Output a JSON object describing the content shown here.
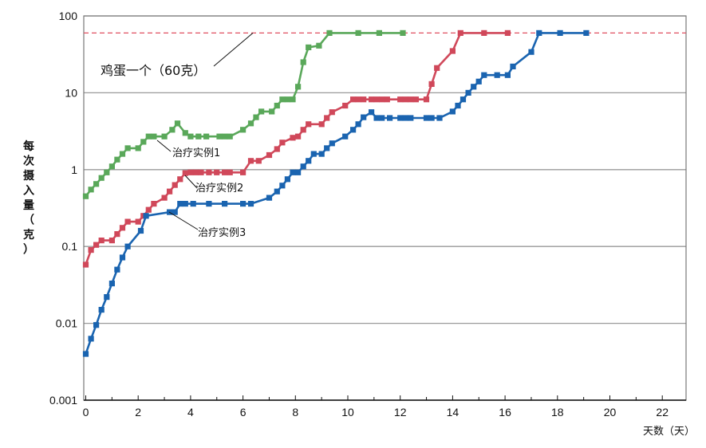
{
  "chart_data": {
    "type": "line",
    "yscale": "log",
    "xlim": [
      0,
      23
    ],
    "ylim": [
      0.001,
      100
    ],
    "x_ticks": [
      0,
      2,
      4,
      6,
      8,
      10,
      12,
      14,
      16,
      18,
      20,
      22
    ],
    "y_ticks": [
      {
        "value": 0.001,
        "label": "0.001"
      },
      {
        "value": 0.01,
        "label": "0.01"
      },
      {
        "value": 0.1,
        "label": "0.1"
      },
      {
        "value": 1,
        "label": "1"
      },
      {
        "value": 10,
        "label": "10"
      },
      {
        "value": 100,
        "label": "100"
      }
    ],
    "xlabel": "天数（天）",
    "ylabel": "每次摄入量（克）",
    "grid": "horizontal",
    "reference_line": {
      "value": 60,
      "label": "鸡蛋一个（60克）",
      "color": "#e05060"
    },
    "series": [
      {
        "name": "治疗实例1",
        "color": "#5aa85a",
        "points": [
          [
            0,
            0.45
          ],
          [
            0.2,
            0.55
          ],
          [
            0.4,
            0.65
          ],
          [
            0.6,
            0.78
          ],
          [
            0.8,
            0.92
          ],
          [
            1.0,
            1.1
          ],
          [
            1.2,
            1.35
          ],
          [
            1.4,
            1.6
          ],
          [
            1.6,
            1.9
          ],
          [
            2.0,
            1.9
          ],
          [
            2.2,
            2.3
          ],
          [
            2.4,
            2.7
          ],
          [
            2.6,
            2.7
          ],
          [
            3.0,
            2.7
          ],
          [
            3.3,
            3.3
          ],
          [
            3.5,
            4.0
          ],
          [
            3.8,
            3.0
          ],
          [
            4.0,
            2.7
          ],
          [
            4.3,
            2.7
          ],
          [
            4.6,
            2.7
          ],
          [
            5.1,
            2.7
          ],
          [
            5.3,
            2.7
          ],
          [
            5.5,
            2.7
          ],
          [
            6.0,
            3.3
          ],
          [
            6.3,
            4.0
          ],
          [
            6.5,
            4.8
          ],
          [
            6.7,
            5.7
          ],
          [
            7.1,
            5.7
          ],
          [
            7.3,
            6.8
          ],
          [
            7.5,
            8.2
          ],
          [
            7.7,
            8.2
          ],
          [
            7.9,
            8.2
          ],
          [
            8.1,
            12
          ],
          [
            8.3,
            25
          ],
          [
            8.5,
            39
          ],
          [
            8.9,
            41
          ],
          [
            9.3,
            60
          ],
          [
            10.4,
            60
          ],
          [
            11.2,
            60
          ],
          [
            12.1,
            60
          ]
        ]
      },
      {
        "name": "治疗实例2",
        "color": "#d0485a",
        "points": [
          [
            0,
            0.058
          ],
          [
            0.2,
            0.09
          ],
          [
            0.4,
            0.105
          ],
          [
            0.6,
            0.12
          ],
          [
            1.0,
            0.12
          ],
          [
            1.2,
            0.145
          ],
          [
            1.4,
            0.175
          ],
          [
            1.6,
            0.21
          ],
          [
            2.0,
            0.21
          ],
          [
            2.2,
            0.25
          ],
          [
            2.4,
            0.3
          ],
          [
            2.6,
            0.36
          ],
          [
            3.0,
            0.43
          ],
          [
            3.2,
            0.52
          ],
          [
            3.4,
            0.63
          ],
          [
            3.6,
            0.75
          ],
          [
            3.8,
            0.9
          ],
          [
            4.0,
            0.92
          ],
          [
            4.2,
            0.92
          ],
          [
            4.4,
            0.92
          ],
          [
            4.7,
            0.92
          ],
          [
            5.0,
            0.92
          ],
          [
            5.3,
            0.92
          ],
          [
            5.5,
            0.92
          ],
          [
            6.0,
            0.92
          ],
          [
            6.3,
            1.3
          ],
          [
            6.6,
            1.3
          ],
          [
            7.0,
            1.55
          ],
          [
            7.3,
            1.85
          ],
          [
            7.5,
            2.25
          ],
          [
            7.9,
            2.6
          ],
          [
            8.1,
            2.7
          ],
          [
            8.3,
            3.3
          ],
          [
            8.5,
            3.9
          ],
          [
            9.0,
            3.9
          ],
          [
            9.2,
            4.7
          ],
          [
            9.4,
            5.6
          ],
          [
            9.9,
            6.8
          ],
          [
            10.2,
            8.2
          ],
          [
            10.4,
            8.2
          ],
          [
            10.6,
            8.2
          ],
          [
            10.9,
            8.2
          ],
          [
            11.1,
            8.2
          ],
          [
            11.3,
            8.2
          ],
          [
            11.5,
            8.2
          ],
          [
            12.0,
            8.2
          ],
          [
            12.2,
            8.2
          ],
          [
            12.4,
            8.2
          ],
          [
            12.6,
            8.2
          ],
          [
            13.0,
            8.2
          ],
          [
            13.2,
            13
          ],
          [
            13.4,
            21
          ],
          [
            14.0,
            35
          ],
          [
            14.3,
            60
          ],
          [
            15.2,
            60
          ],
          [
            16.1,
            60
          ]
        ]
      },
      {
        "name": "治疗实例3",
        "color": "#1a64b0",
        "points": [
          [
            0,
            0.004
          ],
          [
            0.2,
            0.0063
          ],
          [
            0.4,
            0.0095
          ],
          [
            0.6,
            0.015
          ],
          [
            0.8,
            0.022
          ],
          [
            1.0,
            0.033
          ],
          [
            1.2,
            0.05
          ],
          [
            1.4,
            0.072
          ],
          [
            1.6,
            0.1
          ],
          [
            2.1,
            0.16
          ],
          [
            2.3,
            0.25
          ],
          [
            3.2,
            0.28
          ],
          [
            3.4,
            0.28
          ],
          [
            3.6,
            0.36
          ],
          [
            3.8,
            0.36
          ],
          [
            4.1,
            0.36
          ],
          [
            4.7,
            0.36
          ],
          [
            5.3,
            0.36
          ],
          [
            6.0,
            0.36
          ],
          [
            6.3,
            0.36
          ],
          [
            7.0,
            0.43
          ],
          [
            7.3,
            0.52
          ],
          [
            7.5,
            0.62
          ],
          [
            7.7,
            0.75
          ],
          [
            7.9,
            0.92
          ],
          [
            8.1,
            0.92
          ],
          [
            8.3,
            1.1
          ],
          [
            8.5,
            1.3
          ],
          [
            8.7,
            1.6
          ],
          [
            9.0,
            1.6
          ],
          [
            9.2,
            1.9
          ],
          [
            9.4,
            2.2
          ],
          [
            9.9,
            2.7
          ],
          [
            10.2,
            3.3
          ],
          [
            10.4,
            3.9
          ],
          [
            10.6,
            4.8
          ],
          [
            10.9,
            5.6
          ],
          [
            11.1,
            4.7
          ],
          [
            11.3,
            4.7
          ],
          [
            11.6,
            4.7
          ],
          [
            12.0,
            4.7
          ],
          [
            12.2,
            4.7
          ],
          [
            12.4,
            4.7
          ],
          [
            13.0,
            4.7
          ],
          [
            13.2,
            4.7
          ],
          [
            13.5,
            4.7
          ],
          [
            14.0,
            5.7
          ],
          [
            14.2,
            6.8
          ],
          [
            14.4,
            8.2
          ],
          [
            14.6,
            10
          ],
          [
            14.8,
            12
          ],
          [
            15.0,
            14
          ],
          [
            15.2,
            17
          ],
          [
            15.7,
            17
          ],
          [
            16.1,
            17
          ],
          [
            16.3,
            22
          ],
          [
            17.0,
            34
          ],
          [
            17.3,
            60
          ],
          [
            18.1,
            60
          ],
          [
            19.1,
            60
          ]
        ]
      }
    ]
  }
}
